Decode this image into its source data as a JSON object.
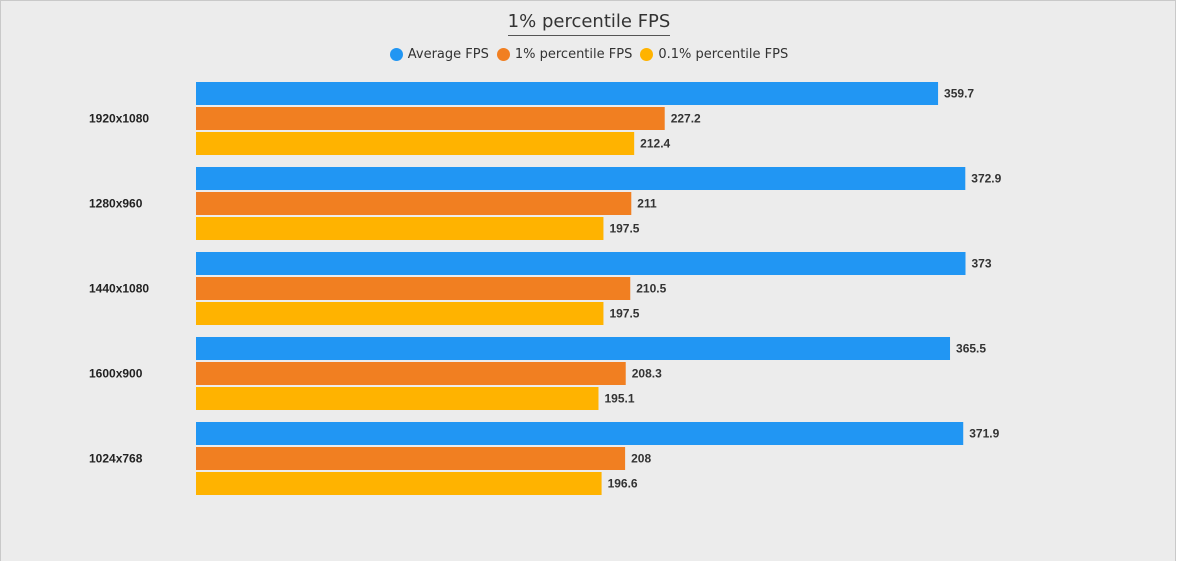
{
  "chart_data": {
    "type": "bar",
    "orientation": "horizontal",
    "title": "1% percentile FPS",
    "categories": [
      "1920x1080",
      "1280x960",
      "1440x1080",
      "1600x900",
      "1024x768"
    ],
    "series": [
      {
        "name": "Average FPS",
        "color": "#2196f3",
        "values": [
          359.7,
          372.9,
          373,
          365.5,
          371.9
        ]
      },
      {
        "name": "1% percentile FPS",
        "color": "#f17f21",
        "values": [
          227.2,
          211,
          210.5,
          208.3,
          208
        ]
      },
      {
        "name": "0.1% percentile FPS",
        "color": "#ffb300",
        "values": [
          212.4,
          197.5,
          197.5,
          195.1,
          196.6
        ]
      }
    ],
    "xlim": [
      0,
      460
    ],
    "grid": false,
    "legend_position": "top-center",
    "xlabel": "",
    "ylabel": ""
  }
}
